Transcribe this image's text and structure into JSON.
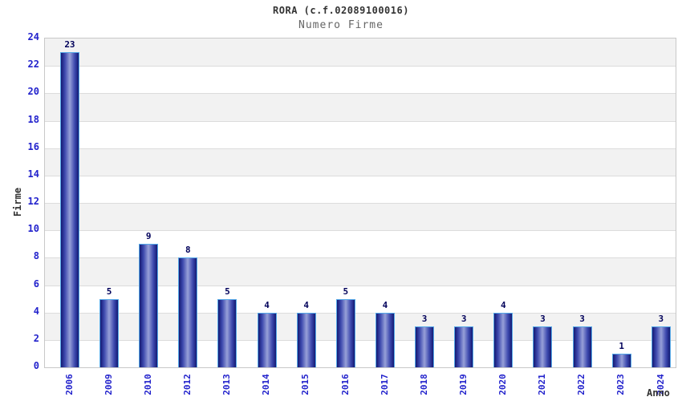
{
  "chart_data": {
    "type": "bar",
    "title": "RORA (c.f.02089100016)",
    "subtitle": "Numero Firme",
    "xlabel": "Anno",
    "ylabel": "Firme",
    "categories": [
      "2006",
      "2009",
      "2010",
      "2012",
      "2013",
      "2014",
      "2015",
      "2016",
      "2017",
      "2018",
      "2019",
      "2020",
      "2021",
      "2022",
      "2023",
      "2024"
    ],
    "values": [
      23,
      5,
      9,
      8,
      5,
      4,
      4,
      5,
      4,
      3,
      3,
      4,
      3,
      3,
      1,
      3
    ],
    "ylim": [
      0,
      24
    ],
    "ytick_step": 2,
    "yticks": [
      0,
      2,
      4,
      6,
      8,
      10,
      12,
      14,
      16,
      18,
      20,
      22,
      24
    ],
    "grid": "horizontal",
    "legend_position": "none",
    "background_bands": "alternating gray/white every 2 units"
  },
  "colors": {
    "tick_text": "#2222cc",
    "bar_value_text": "#00005a",
    "title_text": "#333333",
    "subtitle_text": "#666666",
    "axis_label_text": "#333333",
    "plot_band_gray": "#f2f2f2",
    "plot_band_white": "#ffffff",
    "grid_line": "#dcdcdc",
    "plot_border": "#c8c8c8",
    "bar_edge_dark": "#141a73",
    "bar_mid": "#3d49ae",
    "bar_center_light": "#97a0d8",
    "bar_outline": "#55a9e8"
  }
}
